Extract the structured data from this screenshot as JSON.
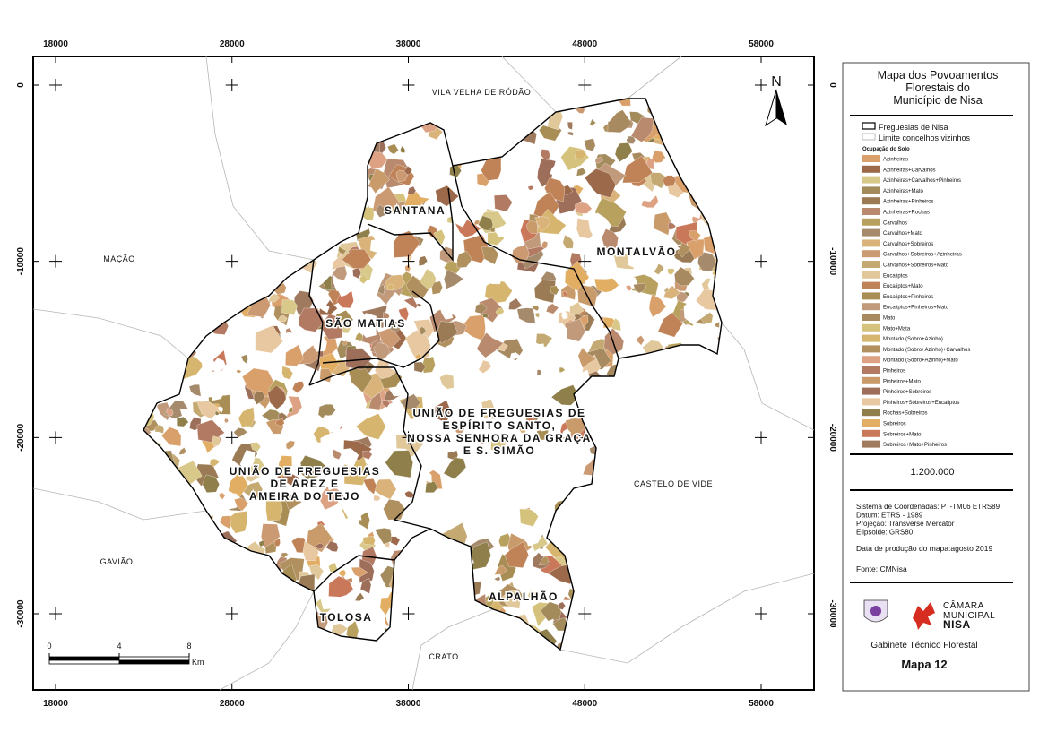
{
  "map": {
    "grid_x": [
      18000,
      28000,
      38000,
      48000,
      58000
    ],
    "grid_y": [
      0,
      -10000,
      -20000,
      -30000
    ],
    "neighbours": [
      "VILA VELHA DE RÓDÃO",
      "MAÇÃO",
      "GAVIÃO",
      "CRATO",
      "CASTELO DE VIDE"
    ],
    "parishes": [
      [
        "SANTANA"
      ],
      [
        "MONTALVÃO"
      ],
      [
        "SÃO MATIAS"
      ],
      [
        "UNIÃO DE FREGUESIAS DE",
        "ESPÍRITO SANTO,",
        "NOSSA SENHORA DA GRAÇA",
        "E S. SIMÃO"
      ],
      [
        "UNIÃO DE FREGUESIAS",
        "DE AREZ E",
        "AMEIRA DO TEJO"
      ],
      [
        "TOLOSA"
      ],
      [
        "ALPALHÃO"
      ]
    ],
    "north": "N",
    "scale_bar": {
      "ticks": [
        0,
        4,
        8
      ],
      "unit": "Km"
    }
  },
  "legend": {
    "title": [
      "Mapa dos Povoamentos",
      "Florestais do",
      "Município de Nisa"
    ],
    "boundaries": [
      "Freguesias de Nisa",
      "Limite concelhos vizinhos"
    ],
    "classes_title": "Ocupação do Solo",
    "classes": [
      {
        "label": "Azinheiras",
        "color": "#d9a06b"
      },
      {
        "label": "Azinheiras+Carvalhos",
        "color": "#9c6a4a"
      },
      {
        "label": "Azinheiras+Carvalhos+Pinheiros",
        "color": "#d8c98a"
      },
      {
        "label": "Azinheiras+Mato",
        "color": "#a38b5c"
      },
      {
        "label": "Azinheiras+Pinheiros",
        "color": "#9a7b55"
      },
      {
        "label": "Azinheiras+Rochas",
        "color": "#b98a6d"
      },
      {
        "label": "Carvalhos",
        "color": "#b8a15e"
      },
      {
        "label": "Carvalhos+Mato",
        "color": "#a58a6b"
      },
      {
        "label": "Carvalhos+Sobreiros",
        "color": "#d9b37a"
      },
      {
        "label": "Carvalhos+Sobreiros+Azinheiras",
        "color": "#cc9a72"
      },
      {
        "label": "Carvalhos+Sobreiros+Mato",
        "color": "#c4aa72"
      },
      {
        "label": "Eucaliptos",
        "color": "#e0c89a"
      },
      {
        "label": "Eucaliptos+Mato",
        "color": "#c08358"
      },
      {
        "label": "Eucaliptos+Pinheiros",
        "color": "#a88e55"
      },
      {
        "label": "Eucaliptos+Pinheiros+Mato",
        "color": "#c09a7a"
      },
      {
        "label": "Mato",
        "color": "#a88a60"
      },
      {
        "label": "Mato+Mata",
        "color": "#d5c27c"
      },
      {
        "label": "Montado (Sobro+Azinho)",
        "color": "#d6b56e"
      },
      {
        "label": "Montado (Sobro+Azinho)+Carvalhos",
        "color": "#b0905e"
      },
      {
        "label": "Montado (Sobro+Azinho)+Mato",
        "color": "#dda283"
      },
      {
        "label": "Pinheiros",
        "color": "#b27a62"
      },
      {
        "label": "Pinheiros+Mato",
        "color": "#c99a6a"
      },
      {
        "label": "Pinheiros+Sobreiros",
        "color": "#9d6e5a"
      },
      {
        "label": "Pinheiros+Sobreiros+Eucaliptos",
        "color": "#e7c8a0"
      },
      {
        "label": "Rochas+Sobreiros",
        "color": "#8f7f4a"
      },
      {
        "label": "Sobreiros",
        "color": "#e2ae63"
      },
      {
        "label": "Sobreiros+Mato",
        "color": "#c9785a"
      },
      {
        "label": "Sobreiros+Mato+Pinheiros",
        "color": "#a07a5e"
      }
    ],
    "scale": "1:200.000",
    "crs": [
      "Sistema de Coordenadas: PT-TM06 ETRS89",
      "Datum:  ETRS - 1989",
      "Projeção: Transverse Mercator",
      "Elipsoide: GRS80"
    ],
    "date": "Data de produção do mapa:agosto 2019",
    "source": "Fonte: CMNisa",
    "logo": [
      "CÂMARA",
      "MUNICIPAL",
      "NISA"
    ],
    "office": "Gabinete Técnico Florestal",
    "map_id": "Mapa 12"
  }
}
